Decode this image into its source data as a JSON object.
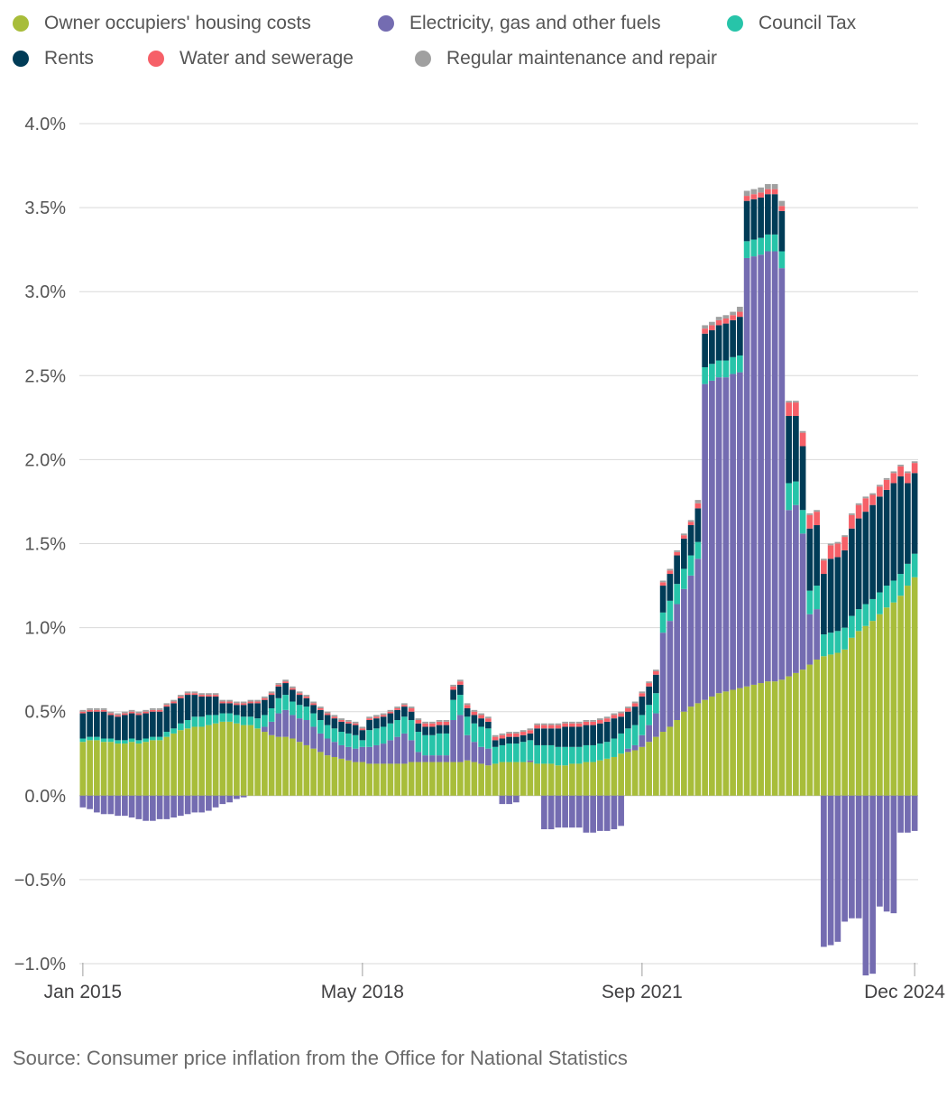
{
  "chart_data": {
    "type": "bar",
    "stacked": true,
    "title": "",
    "xlabel": "",
    "ylabel": "",
    "ylim": [
      -1.0,
      4.0
    ],
    "yticks": [
      "4.0%",
      "3.5%",
      "3.0%",
      "2.5%",
      "2.0%",
      "1.5%",
      "1.0%",
      "0.5%",
      "0.0%",
      "−0.5%",
      "−1.0%"
    ],
    "ytick_values": [
      4.0,
      3.5,
      3.0,
      2.5,
      2.0,
      1.5,
      1.0,
      0.5,
      0.0,
      -0.5,
      -1.0
    ],
    "xticks": [
      "Jan 2015",
      "May 2018",
      "Sep 2021",
      "Dec 2024"
    ],
    "xtick_indices": [
      0,
      40,
      80,
      119
    ],
    "grid": true,
    "legend_placement": "top",
    "periods": "monthly, Jan 2015 to Dec 2024 (120 bars)",
    "series": [
      {
        "name": "Owner occupiers' housing costs",
        "color": "#a8bd3a",
        "values": [
          0.32,
          0.33,
          0.33,
          0.32,
          0.32,
          0.31,
          0.31,
          0.32,
          0.31,
          0.32,
          0.33,
          0.33,
          0.35,
          0.37,
          0.39,
          0.4,
          0.41,
          0.41,
          0.42,
          0.43,
          0.44,
          0.44,
          0.43,
          0.42,
          0.42,
          0.4,
          0.38,
          0.36,
          0.35,
          0.35,
          0.34,
          0.32,
          0.3,
          0.28,
          0.26,
          0.24,
          0.23,
          0.22,
          0.21,
          0.2,
          0.2,
          0.19,
          0.19,
          0.19,
          0.19,
          0.19,
          0.19,
          0.2,
          0.2,
          0.2,
          0.2,
          0.2,
          0.2,
          0.2,
          0.2,
          0.21,
          0.2,
          0.19,
          0.18,
          0.19,
          0.2,
          0.2,
          0.2,
          0.2,
          0.2,
          0.19,
          0.19,
          0.19,
          0.18,
          0.18,
          0.19,
          0.19,
          0.2,
          0.2,
          0.21,
          0.22,
          0.23,
          0.25,
          0.26,
          0.27,
          0.29,
          0.32,
          0.35,
          0.38,
          0.41,
          0.45,
          0.5,
          0.53,
          0.55,
          0.57,
          0.59,
          0.61,
          0.62,
          0.63,
          0.64,
          0.65,
          0.66,
          0.67,
          0.68,
          0.68,
          0.69,
          0.71,
          0.73,
          0.75,
          0.78,
          0.81,
          0.83,
          0.84,
          0.85,
          0.87,
          0.94,
          0.98,
          1.01,
          1.04,
          1.08,
          1.12,
          1.15,
          1.19,
          1.25,
          1.3
        ]
      },
      {
        "name": "Electricity, gas and other fuels",
        "color": "#746cb1",
        "values": [
          -0.07,
          -0.08,
          -0.1,
          -0.11,
          -0.11,
          -0.12,
          -0.12,
          -0.13,
          -0.14,
          -0.15,
          -0.15,
          -0.14,
          -0.14,
          -0.13,
          -0.12,
          -0.11,
          -0.1,
          -0.1,
          -0.09,
          -0.07,
          -0.05,
          -0.04,
          -0.02,
          -0.01,
          0.0,
          0.0,
          0.03,
          0.08,
          0.14,
          0.16,
          0.14,
          0.14,
          0.15,
          0.13,
          0.11,
          0.1,
          0.09,
          0.08,
          0.08,
          0.08,
          0.09,
          0.1,
          0.11,
          0.12,
          0.14,
          0.16,
          0.18,
          0.13,
          0.06,
          0.04,
          0.04,
          0.04,
          0.04,
          0.25,
          0.28,
          0.15,
          0.12,
          0.1,
          0.1,
          0.0,
          -0.05,
          -0.05,
          -0.04,
          0.0,
          0.01,
          0.0,
          -0.2,
          -0.2,
          -0.19,
          -0.19,
          -0.19,
          -0.19,
          -0.22,
          -0.22,
          -0.21,
          -0.21,
          -0.2,
          -0.18,
          0.02,
          0.03,
          0.07,
          0.1,
          0.14,
          0.59,
          0.63,
          0.69,
          0.73,
          0.78,
          0.86,
          1.88,
          1.88,
          1.88,
          1.87,
          1.88,
          1.88,
          2.55,
          2.55,
          2.55,
          2.56,
          2.56,
          2.45,
          0.99,
          1.0,
          0.81,
          0.3,
          0.3,
          -0.9,
          -0.89,
          -0.87,
          -0.75,
          -0.73,
          -0.73,
          -1.07,
          -1.06,
          -0.66,
          -0.69,
          -0.7,
          -0.22,
          -0.22,
          -0.21
        ]
      },
      {
        "name": "Council Tax",
        "color": "#27c4a9",
        "values": [
          0.02,
          0.02,
          0.02,
          0.02,
          0.02,
          0.02,
          0.02,
          0.02,
          0.02,
          0.02,
          0.02,
          0.02,
          0.03,
          0.03,
          0.04,
          0.05,
          0.06,
          0.06,
          0.06,
          0.05,
          0.05,
          0.05,
          0.05,
          0.05,
          0.05,
          0.06,
          0.07,
          0.08,
          0.09,
          0.09,
          0.08,
          0.08,
          0.08,
          0.08,
          0.08,
          0.08,
          0.08,
          0.08,
          0.08,
          0.08,
          0.04,
          0.1,
          0.1,
          0.1,
          0.1,
          0.1,
          0.1,
          0.12,
          0.12,
          0.12,
          0.12,
          0.13,
          0.13,
          0.12,
          0.12,
          0.11,
          0.11,
          0.12,
          0.12,
          0.1,
          0.1,
          0.11,
          0.11,
          0.12,
          0.12,
          0.11,
          0.11,
          0.11,
          0.11,
          0.11,
          0.1,
          0.1,
          0.1,
          0.1,
          0.1,
          0.1,
          0.11,
          0.12,
          0.12,
          0.12,
          0.12,
          0.12,
          0.12,
          0.12,
          0.12,
          0.12,
          0.12,
          0.12,
          0.1,
          0.1,
          0.1,
          0.1,
          0.1,
          0.1,
          0.1,
          0.1,
          0.1,
          0.1,
          0.1,
          0.1,
          0.1,
          0.16,
          0.14,
          0.14,
          0.14,
          0.14,
          0.13,
          0.13,
          0.13,
          0.13,
          0.13,
          0.13,
          0.13,
          0.13,
          0.13,
          0.13,
          0.13,
          0.13,
          0.13,
          0.14
        ]
      },
      {
        "name": "Rents",
        "color": "#003c57",
        "values": [
          0.15,
          0.15,
          0.15,
          0.16,
          0.14,
          0.14,
          0.15,
          0.15,
          0.15,
          0.15,
          0.15,
          0.15,
          0.15,
          0.15,
          0.15,
          0.15,
          0.13,
          0.12,
          0.11,
          0.11,
          0.06,
          0.06,
          0.06,
          0.07,
          0.08,
          0.09,
          0.09,
          0.08,
          0.07,
          0.07,
          0.07,
          0.06,
          0.05,
          0.05,
          0.06,
          0.06,
          0.06,
          0.06,
          0.06,
          0.06,
          0.06,
          0.06,
          0.06,
          0.06,
          0.06,
          0.06,
          0.06,
          0.05,
          0.05,
          0.05,
          0.05,
          0.05,
          0.05,
          0.06,
          0.06,
          0.05,
          0.05,
          0.05,
          0.04,
          0.04,
          0.04,
          0.04,
          0.04,
          0.04,
          0.04,
          0.1,
          0.1,
          0.1,
          0.11,
          0.12,
          0.12,
          0.12,
          0.12,
          0.12,
          0.12,
          0.12,
          0.12,
          0.1,
          0.1,
          0.11,
          0.11,
          0.11,
          0.11,
          0.16,
          0.16,
          0.17,
          0.18,
          0.18,
          0.2,
          0.2,
          0.2,
          0.21,
          0.22,
          0.22,
          0.23,
          0.24,
          0.24,
          0.24,
          0.24,
          0.24,
          0.24,
          0.4,
          0.39,
          0.38,
          0.37,
          0.36,
          0.36,
          0.44,
          0.44,
          0.46,
          0.52,
          0.54,
          0.55,
          0.56,
          0.57,
          0.57,
          0.58,
          0.58,
          0.48,
          0.48
        ]
      },
      {
        "name": "Water and sewerage",
        "color": "#f66068",
        "values": [
          0.01,
          0.01,
          0.01,
          0.01,
          0.01,
          0.01,
          0.01,
          0.01,
          0.01,
          0.01,
          0.01,
          0.01,
          0.01,
          0.01,
          0.01,
          0.01,
          0.01,
          0.01,
          0.01,
          0.01,
          0.01,
          0.01,
          0.01,
          0.01,
          0.01,
          0.01,
          0.01,
          0.01,
          0.01,
          0.01,
          0.01,
          0.01,
          0.01,
          0.01,
          0.01,
          0.01,
          0.01,
          0.01,
          0.01,
          0.01,
          0.01,
          0.01,
          0.01,
          0.01,
          0.01,
          0.01,
          0.01,
          0.02,
          0.02,
          0.02,
          0.02,
          0.02,
          0.02,
          0.02,
          0.02,
          0.02,
          0.02,
          0.02,
          0.02,
          0.02,
          0.02,
          0.02,
          0.02,
          0.02,
          0.02,
          0.02,
          0.02,
          0.02,
          0.02,
          0.02,
          0.02,
          0.02,
          0.02,
          0.02,
          0.02,
          0.02,
          0.02,
          0.02,
          0.02,
          0.02,
          0.02,
          0.02,
          0.02,
          0.02,
          0.02,
          0.02,
          0.02,
          0.02,
          0.03,
          0.03,
          0.03,
          0.03,
          0.03,
          0.03,
          0.03,
          0.03,
          0.03,
          0.03,
          0.03,
          0.03,
          0.03,
          0.08,
          0.08,
          0.08,
          0.08,
          0.08,
          0.08,
          0.08,
          0.08,
          0.08,
          0.08,
          0.08,
          0.08,
          0.06,
          0.06,
          0.06,
          0.06,
          0.06,
          0.06,
          0.06
        ]
      },
      {
        "name": "Regular maintenance and repair",
        "color": "#a0a0a0",
        "values": [
          0.01,
          0.01,
          0.01,
          0.01,
          0.01,
          0.01,
          0.01,
          0.01,
          0.01,
          0.01,
          0.01,
          0.01,
          0.01,
          0.01,
          0.01,
          0.01,
          0.01,
          0.01,
          0.01,
          0.01,
          0.01,
          0.01,
          0.01,
          0.01,
          0.01,
          0.01,
          0.01,
          0.01,
          0.01,
          0.01,
          0.01,
          0.01,
          0.01,
          0.01,
          0.01,
          0.01,
          0.01,
          0.01,
          0.01,
          0.01,
          0.01,
          0.01,
          0.01,
          0.01,
          0.01,
          0.01,
          0.01,
          0.01,
          0.01,
          0.01,
          0.01,
          0.01,
          0.01,
          0.01,
          0.01,
          0.01,
          0.01,
          0.01,
          0.01,
          0.01,
          0.01,
          0.01,
          0.01,
          0.01,
          0.01,
          0.01,
          0.01,
          0.01,
          0.01,
          0.01,
          0.01,
          0.01,
          0.01,
          0.01,
          0.01,
          0.01,
          0.01,
          0.01,
          0.01,
          0.01,
          0.01,
          0.01,
          0.01,
          0.01,
          0.01,
          0.01,
          0.01,
          0.01,
          0.02,
          0.02,
          0.02,
          0.02,
          0.02,
          0.02,
          0.03,
          0.03,
          0.03,
          0.03,
          0.03,
          0.03,
          0.03,
          0.01,
          0.01,
          0.01,
          0.01,
          0.01,
          0.01,
          0.01,
          0.01,
          0.01,
          0.01,
          0.01,
          0.01,
          0.01,
          0.01,
          0.01,
          0.01,
          0.01,
          0.01,
          0.01
        ]
      }
    ]
  },
  "source": "Source: Consumer price inflation from the Office for National Statistics"
}
